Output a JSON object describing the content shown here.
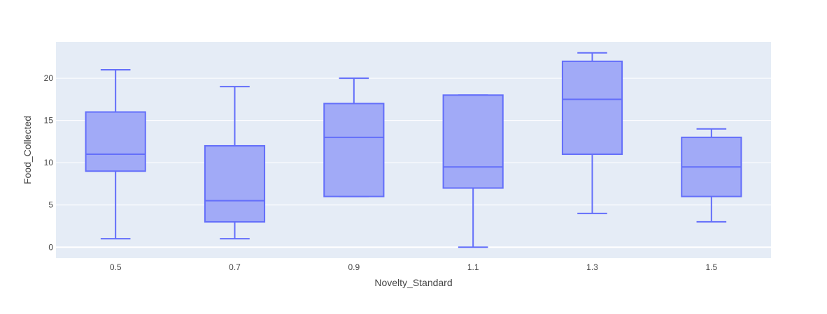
{
  "chart_data": {
    "type": "box",
    "xlabel": "Novelty_Standard",
    "ylabel": "Food_Collected",
    "categories": [
      "0.5",
      "0.7",
      "0.9",
      "1.1",
      "1.3",
      "1.5"
    ],
    "boxes": [
      {
        "category": "0.5",
        "min": 1,
        "q1": 9,
        "median": 11,
        "q3": 16,
        "max": 21
      },
      {
        "category": "0.7",
        "min": 1,
        "q1": 3,
        "median": 5.5,
        "q3": 12,
        "max": 19
      },
      {
        "category": "0.9",
        "min": 6,
        "q1": 6,
        "median": 13,
        "q3": 17,
        "max": 20
      },
      {
        "category": "1.1",
        "min": 0,
        "q1": 7,
        "median": 9.5,
        "q3": 18,
        "max": 18
      },
      {
        "category": "1.3",
        "min": 4,
        "q1": 11,
        "median": 17.5,
        "q3": 22,
        "max": 23
      },
      {
        "category": "1.5",
        "min": 3,
        "q1": 6,
        "median": 9.5,
        "q3": 13,
        "max": 14
      }
    ],
    "yticks": [
      0,
      5,
      10,
      15,
      20
    ],
    "ylim": [
      -1.3,
      24.3
    ],
    "grid": true,
    "colors": {
      "plot_bg": "#E5ECF6",
      "grid": "#FFFFFF",
      "box_line": "#636EFA",
      "box_fill": "#A1AAF7"
    }
  }
}
